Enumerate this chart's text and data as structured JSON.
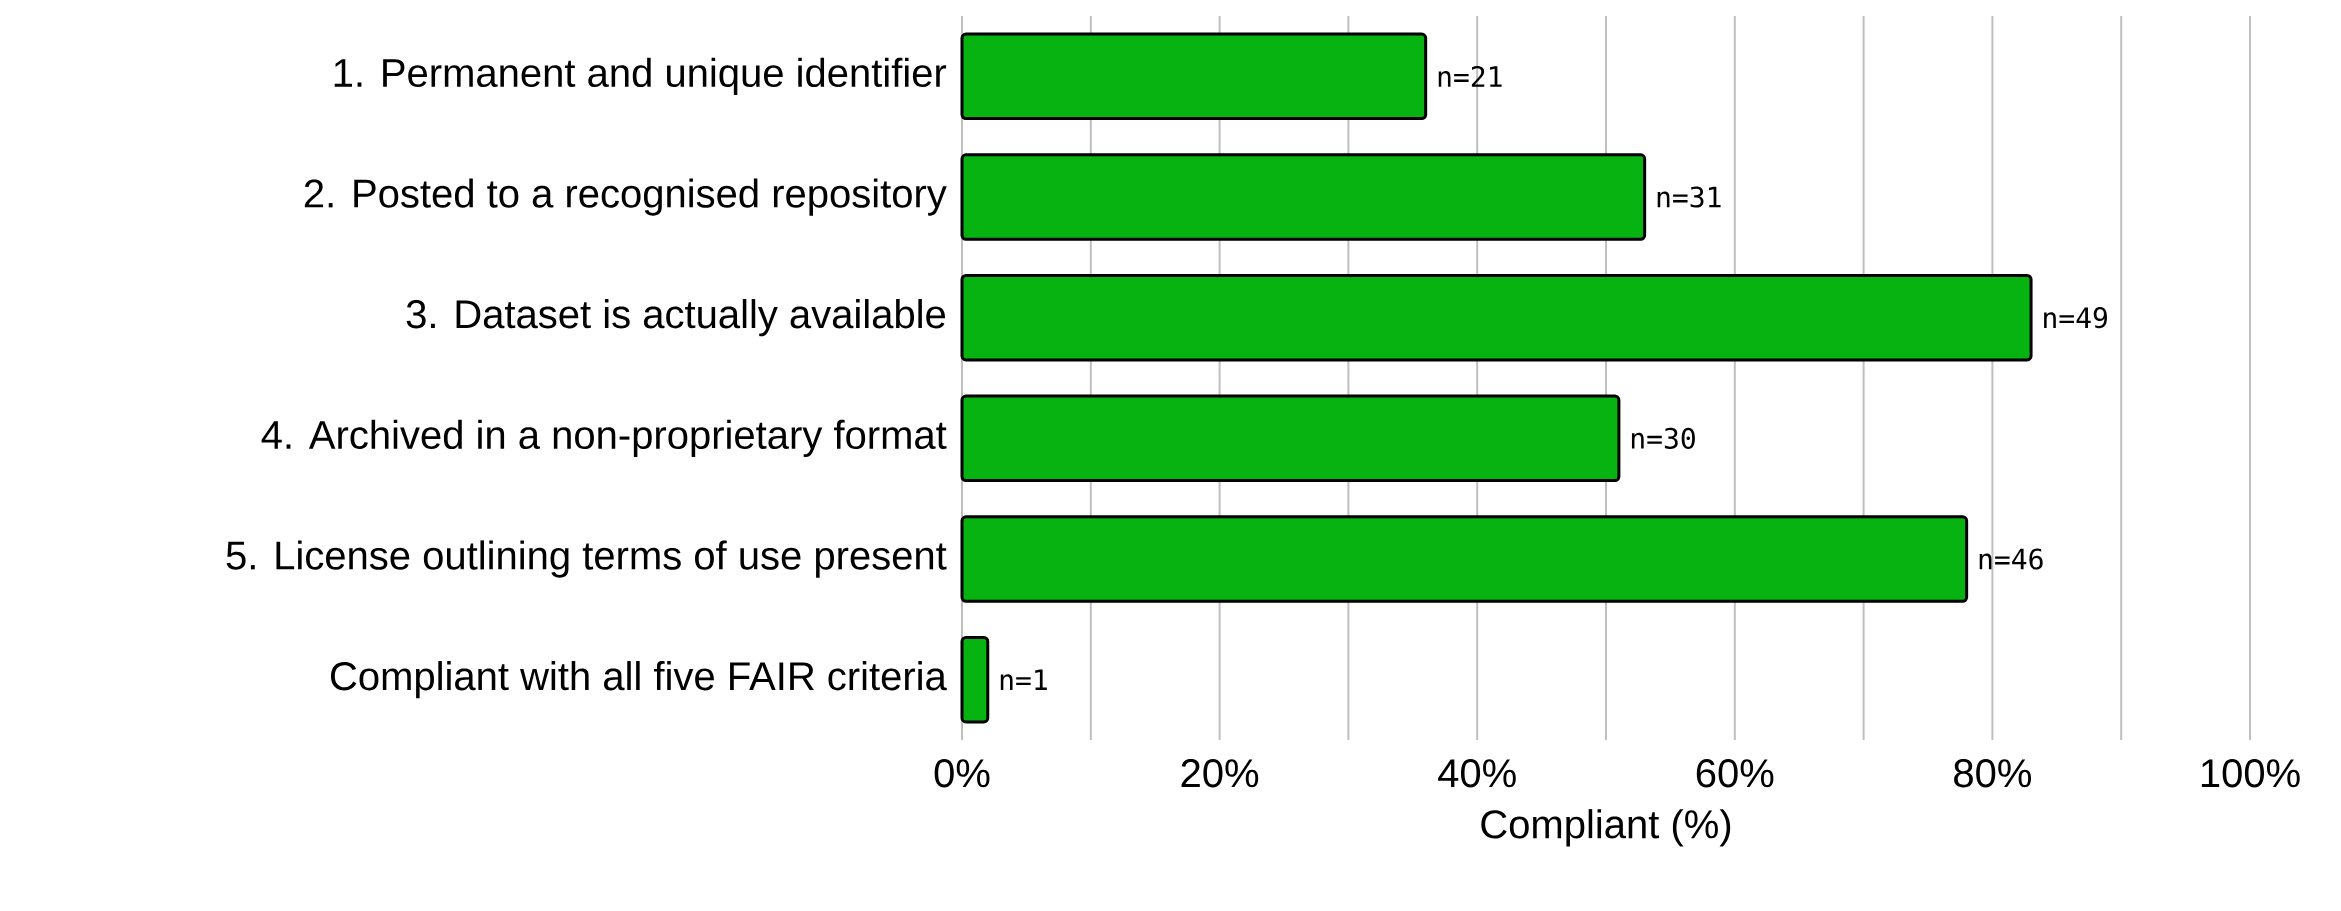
{
  "chart_data": {
    "type": "bar",
    "orientation": "horizontal",
    "categories": [
      "1. Permanent and unique identifier",
      "2. Posted to a recognised repository",
      "3. Dataset is actually available",
      "4.  Archived in a non-proprietary format",
      "5. License outlining terms of use present",
      "Compliant with all five FAIR criteria"
    ],
    "values": [
      36,
      53,
      83,
      51,
      78,
      2
    ],
    "annotations": [
      {
        "text": "n=21",
        "x": 36,
        "y": "1. Permanent and unique identifier"
      },
      {
        "text": "n=31",
        "x": 53,
        "y": "2. Posted to a recognised repository"
      },
      {
        "text": "n=49",
        "x": 83,
        "y": "3. Dataset is actually available"
      },
      {
        "text": "n=30",
        "x": 51,
        "y": "4.  Archived in a non-proprietary format"
      },
      {
        "text": "n=46",
        "x": 78,
        "y": "5. License outlining terms of use present"
      },
      {
        "text": "n=1",
        "x": 2,
        "y": "Compliant with all five FAIR criteria"
      }
    ],
    "color": "#06b310",
    "xlim": [
      0,
      100
    ],
    "xticks": [
      {
        "value": 0,
        "label": "0%"
      },
      {
        "value": 10,
        "label": null
      },
      {
        "value": 20,
        "label": "20%"
      },
      {
        "value": 30,
        "label": null
      },
      {
        "value": 40,
        "label": "40%"
      },
      {
        "value": 50,
        "label": null
      },
      {
        "value": 60,
        "label": "60%"
      },
      {
        "value": 70,
        "label": null
      },
      {
        "value": 80,
        "label": "80%"
      },
      {
        "value": 90,
        "label": null
      },
      {
        "value": 100,
        "label": "100%"
      }
    ],
    "xlabel": "Compliant (%)",
    "grid": "x"
  }
}
